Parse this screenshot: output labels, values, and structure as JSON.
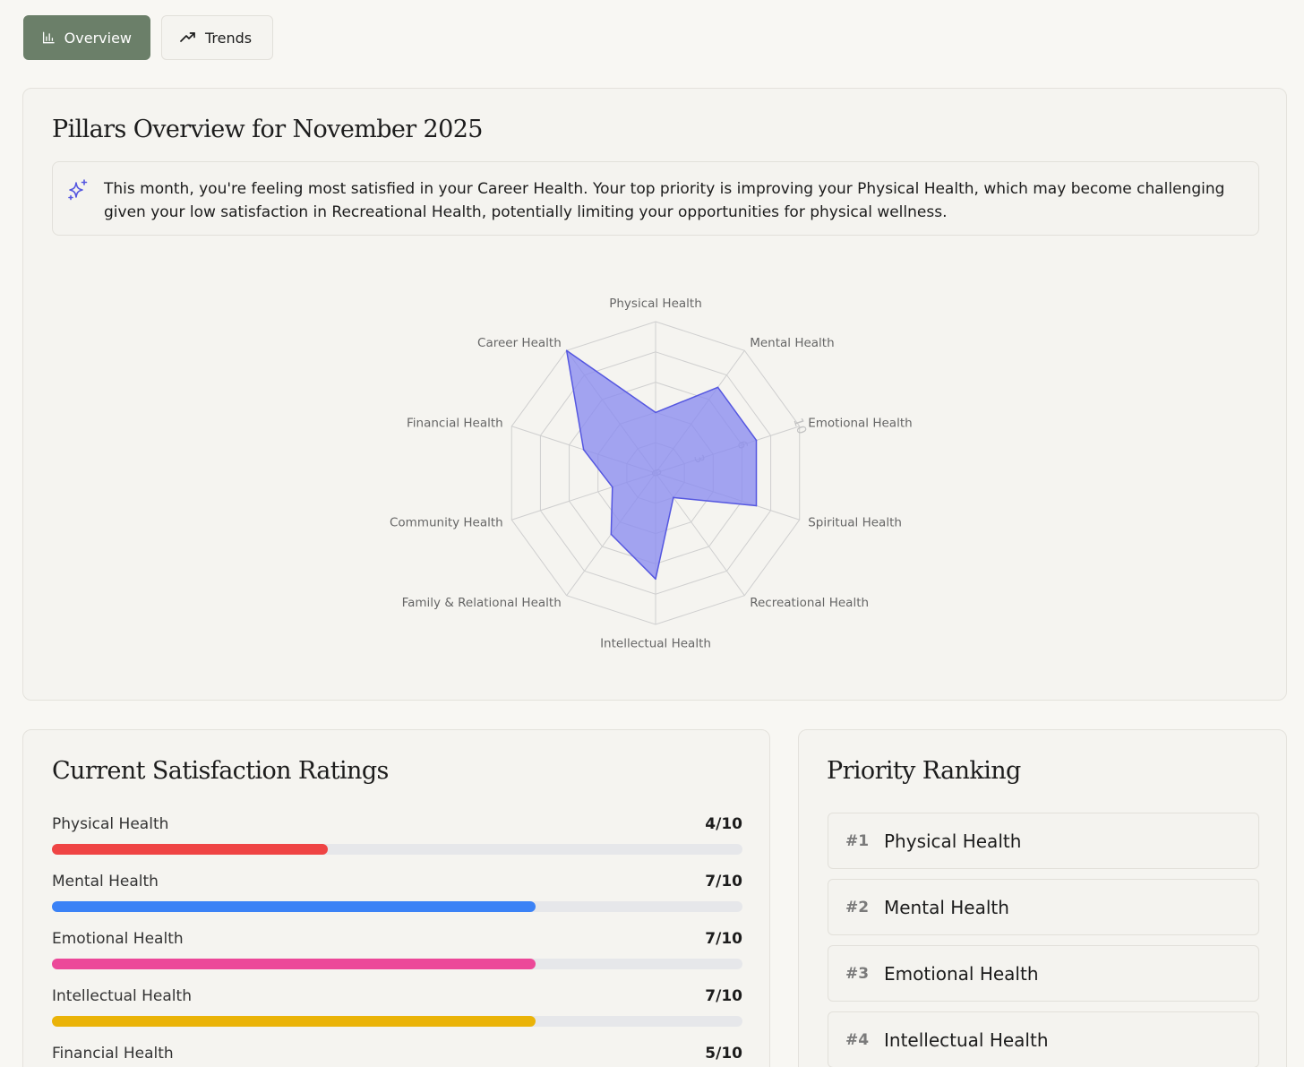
{
  "tabs": [
    {
      "label": "Overview",
      "icon": "bar-chart-icon",
      "active": true
    },
    {
      "label": "Trends",
      "icon": "trending-up-icon",
      "active": false
    }
  ],
  "overview": {
    "title": "Pillars Overview for November 2025",
    "insight": "This month, you're feeling most satisfied in your Career Health. Your top priority is improving your Physical Health, which may become challenging given your low satisfaction in Recreational Health, potentially limiting your opportunities for physical wellness."
  },
  "chart_data": {
    "type": "radar",
    "categories": [
      "Physical Health",
      "Mental Health",
      "Emotional Health",
      "Spiritual Health",
      "Recreational Health",
      "Intellectual Health",
      "Family & Relational Health",
      "Community Health",
      "Financial Health",
      "Career Health"
    ],
    "values": [
      4,
      7,
      7,
      7,
      2,
      7,
      5,
      3,
      5,
      10
    ],
    "rlim": [
      0,
      10
    ],
    "ticks": [
      "0",
      "3",
      "6",
      "10"
    ],
    "fill_color": "#8b8cf0",
    "stroke_color": "#5557e0"
  },
  "satisfaction": {
    "title": "Current Satisfaction Ratings",
    "items": [
      {
        "name": "Physical Health",
        "value": 4,
        "max": 10,
        "display": "4/10",
        "color": "#ef4444"
      },
      {
        "name": "Mental Health",
        "value": 7,
        "max": 10,
        "display": "7/10",
        "color": "#3b82f6"
      },
      {
        "name": "Emotional Health",
        "value": 7,
        "max": 10,
        "display": "7/10",
        "color": "#ec4899"
      },
      {
        "name": "Intellectual Health",
        "value": 7,
        "max": 10,
        "display": "7/10",
        "color": "#eab308"
      },
      {
        "name": "Financial Health",
        "value": 5,
        "max": 10,
        "display": "5/10",
        "color": "#22c55e"
      }
    ]
  },
  "priority": {
    "title": "Priority Ranking",
    "items": [
      {
        "rank": "#1",
        "name": "Physical Health"
      },
      {
        "rank": "#2",
        "name": "Mental Health"
      },
      {
        "rank": "#3",
        "name": "Emotional Health"
      },
      {
        "rank": "#4",
        "name": "Intellectual Health"
      }
    ]
  }
}
